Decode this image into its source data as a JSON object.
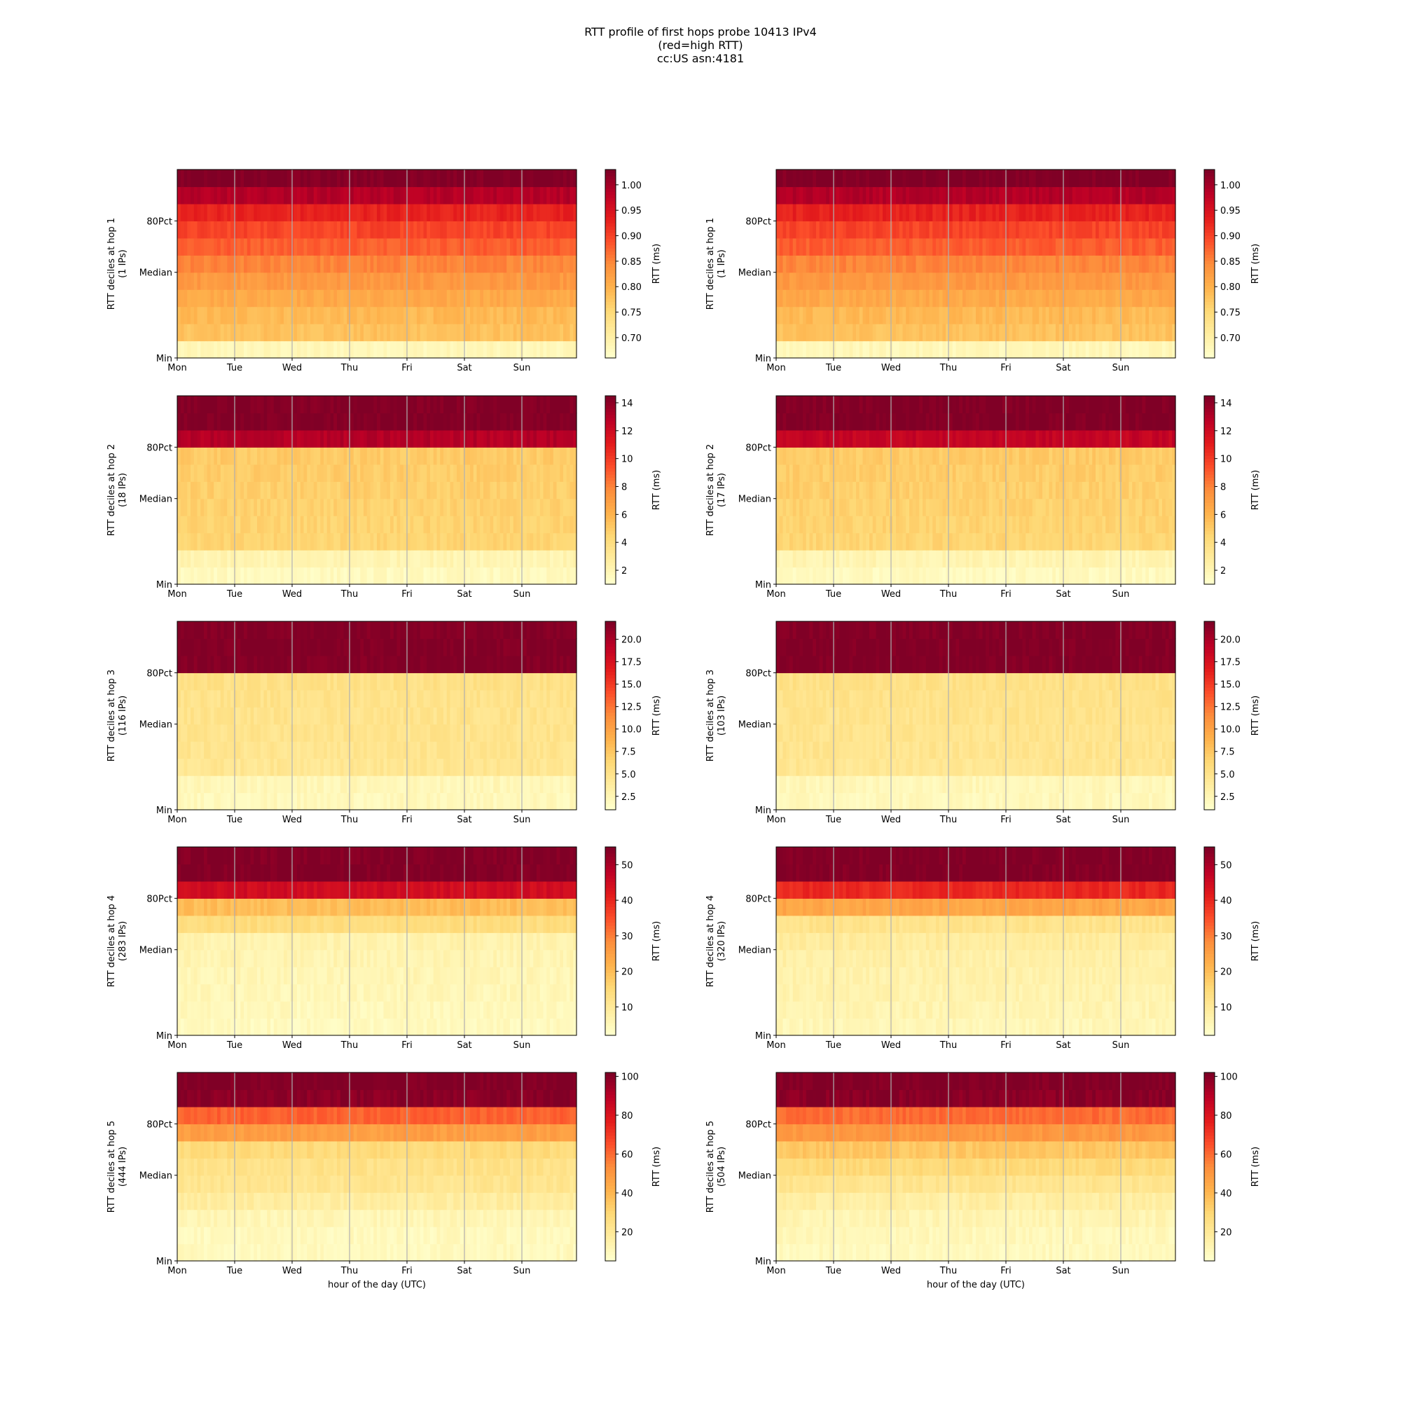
{
  "figure": {
    "title_lines": [
      "RTT profile of first hops probe 10413 IPv4",
      "(red=high RTT)",
      "cc:US asn:4181"
    ],
    "xlabel": "hour of the day (UTC)",
    "colorbar_label": "RTT (ms)"
  },
  "chart_data": [
    {
      "type": "heatmap",
      "col": 0,
      "hop": 1,
      "ylabel": "RTT deciles at hop 1",
      "ips": "(1 IPs)",
      "x": [
        "Mon",
        "Tue",
        "Wed",
        "Thu",
        "Fri",
        "Sat",
        "Sun"
      ],
      "yticks": [
        "Min",
        "Median",
        "80Pct"
      ],
      "clim": [
        0.66,
        1.03
      ],
      "cticks": [
        0.7,
        0.75,
        0.8,
        0.85,
        0.9,
        0.95,
        1.0
      ],
      "deciles": [
        0.68,
        0.78,
        0.79,
        0.81,
        0.83,
        0.85,
        0.88,
        0.9,
        0.93,
        0.99,
        1.03
      ]
    },
    {
      "type": "heatmap",
      "col": 1,
      "hop": 1,
      "ylabel": "RTT deciles at hop 1",
      "ips": "(1 IPs)",
      "x": [
        "Mon",
        "Tue",
        "Wed",
        "Thu",
        "Fri",
        "Sat",
        "Sun"
      ],
      "yticks": [
        "Min",
        "Median",
        "80Pct"
      ],
      "clim": [
        0.66,
        1.03
      ],
      "cticks": [
        0.7,
        0.75,
        0.8,
        0.85,
        0.9,
        0.95,
        1.0
      ],
      "deciles": [
        0.68,
        0.78,
        0.79,
        0.81,
        0.83,
        0.85,
        0.88,
        0.9,
        0.93,
        0.99,
        1.03
      ]
    },
    {
      "type": "heatmap",
      "col": 0,
      "hop": 2,
      "ylabel": "RTT deciles at hop 2",
      "ips": "(18 IPs)",
      "x": [
        "Mon",
        "Tue",
        "Wed",
        "Thu",
        "Fri",
        "Sat",
        "Sun"
      ],
      "yticks": [
        "Min",
        "Median",
        "80Pct"
      ],
      "clim": [
        1,
        14.5
      ],
      "cticks": [
        2,
        4,
        6,
        8,
        10,
        12,
        14
      ],
      "deciles": [
        1.5,
        2.0,
        4.5,
        4.6,
        4.7,
        4.8,
        4.9,
        5.0,
        13.0,
        14.5,
        14.5
      ]
    },
    {
      "type": "heatmap",
      "col": 1,
      "hop": 2,
      "ylabel": "RTT deciles at hop 2",
      "ips": "(17 IPs)",
      "x": [
        "Mon",
        "Tue",
        "Wed",
        "Thu",
        "Fri",
        "Sat",
        "Sun"
      ],
      "yticks": [
        "Min",
        "Median",
        "80Pct"
      ],
      "clim": [
        1,
        14.5
      ],
      "cticks": [
        2,
        4,
        6,
        8,
        10,
        12,
        14
      ],
      "deciles": [
        1.5,
        2.0,
        4.5,
        4.6,
        4.7,
        4.8,
        4.9,
        5.0,
        12.5,
        14.5,
        14.5
      ]
    },
    {
      "type": "heatmap",
      "col": 0,
      "hop": 3,
      "ylabel": "RTT deciles at hop 3",
      "ips": "(116 IPs)",
      "x": [
        "Mon",
        "Tue",
        "Wed",
        "Thu",
        "Fri",
        "Sat",
        "Sun"
      ],
      "yticks": [
        "Min",
        "Median",
        "80Pct"
      ],
      "clim": [
        1,
        22
      ],
      "cticks": [
        2.5,
        5.0,
        7.5,
        10.0,
        12.5,
        15.0,
        17.5,
        20.0
      ],
      "deciles": [
        2.0,
        2.2,
        4.5,
        4.7,
        4.8,
        4.9,
        5.0,
        5.2,
        22,
        22,
        22
      ]
    },
    {
      "type": "heatmap",
      "col": 1,
      "hop": 3,
      "ylabel": "RTT deciles at hop 3",
      "ips": "(103 IPs)",
      "x": [
        "Mon",
        "Tue",
        "Wed",
        "Thu",
        "Fri",
        "Sat",
        "Sun"
      ],
      "yticks": [
        "Min",
        "Median",
        "80Pct"
      ],
      "clim": [
        1,
        22
      ],
      "cticks": [
        2.5,
        5.0,
        7.5,
        10.0,
        12.5,
        15.0,
        17.5,
        20.0
      ],
      "deciles": [
        2.0,
        2.2,
        4.5,
        4.7,
        4.8,
        4.9,
        5.0,
        5.2,
        22,
        22,
        22
      ]
    },
    {
      "type": "heatmap",
      "col": 0,
      "hop": 4,
      "ylabel": "RTT deciles at hop 4",
      "ips": "(283 IPs)",
      "x": [
        "Mon",
        "Tue",
        "Wed",
        "Thu",
        "Fri",
        "Sat",
        "Sun"
      ],
      "yticks": [
        "Min",
        "Median",
        "80Pct"
      ],
      "clim": [
        2,
        55
      ],
      "cticks": [
        10,
        20,
        30,
        40,
        50
      ],
      "deciles": [
        4,
        4.5,
        5,
        5.5,
        6,
        6.5,
        14,
        20,
        45,
        55,
        55
      ]
    },
    {
      "type": "heatmap",
      "col": 1,
      "hop": 4,
      "ylabel": "RTT deciles at hop 4",
      "ips": "(320 IPs)",
      "x": [
        "Mon",
        "Tue",
        "Wed",
        "Thu",
        "Fri",
        "Sat",
        "Sun"
      ],
      "yticks": [
        "Min",
        "Median",
        "80Pct"
      ],
      "clim": [
        2,
        55
      ],
      "cticks": [
        10,
        20,
        30,
        40,
        50
      ],
      "deciles": [
        5,
        6,
        6.5,
        7,
        7.5,
        9,
        12,
        24,
        40,
        55,
        55
      ]
    },
    {
      "type": "heatmap",
      "col": 0,
      "hop": 5,
      "ylabel": "RTT deciles at hop 5",
      "ips": "(444 IPs)",
      "x": [
        "Mon",
        "Tue",
        "Wed",
        "Thu",
        "Fri",
        "Sat",
        "Sun"
      ],
      "yticks": [
        "Min",
        "Median",
        "80Pct"
      ],
      "clim": [
        5,
        102
      ],
      "cticks": [
        20,
        40,
        60,
        80,
        100
      ],
      "deciles": [
        9,
        9,
        11,
        17,
        22,
        24,
        28,
        48,
        62,
        100,
        102
      ]
    },
    {
      "type": "heatmap",
      "col": 1,
      "hop": 5,
      "ylabel": "RTT deciles at hop 5",
      "ips": "(504 IPs)",
      "x": [
        "Mon",
        "Tue",
        "Wed",
        "Thu",
        "Fri",
        "Sat",
        "Sun"
      ],
      "yticks": [
        "Min",
        "Median",
        "80Pct"
      ],
      "clim": [
        5,
        102
      ],
      "cticks": [
        20,
        40,
        60,
        80,
        100
      ],
      "deciles": [
        9,
        10,
        12,
        16,
        22,
        28,
        35,
        50,
        60,
        100,
        102
      ]
    }
  ]
}
